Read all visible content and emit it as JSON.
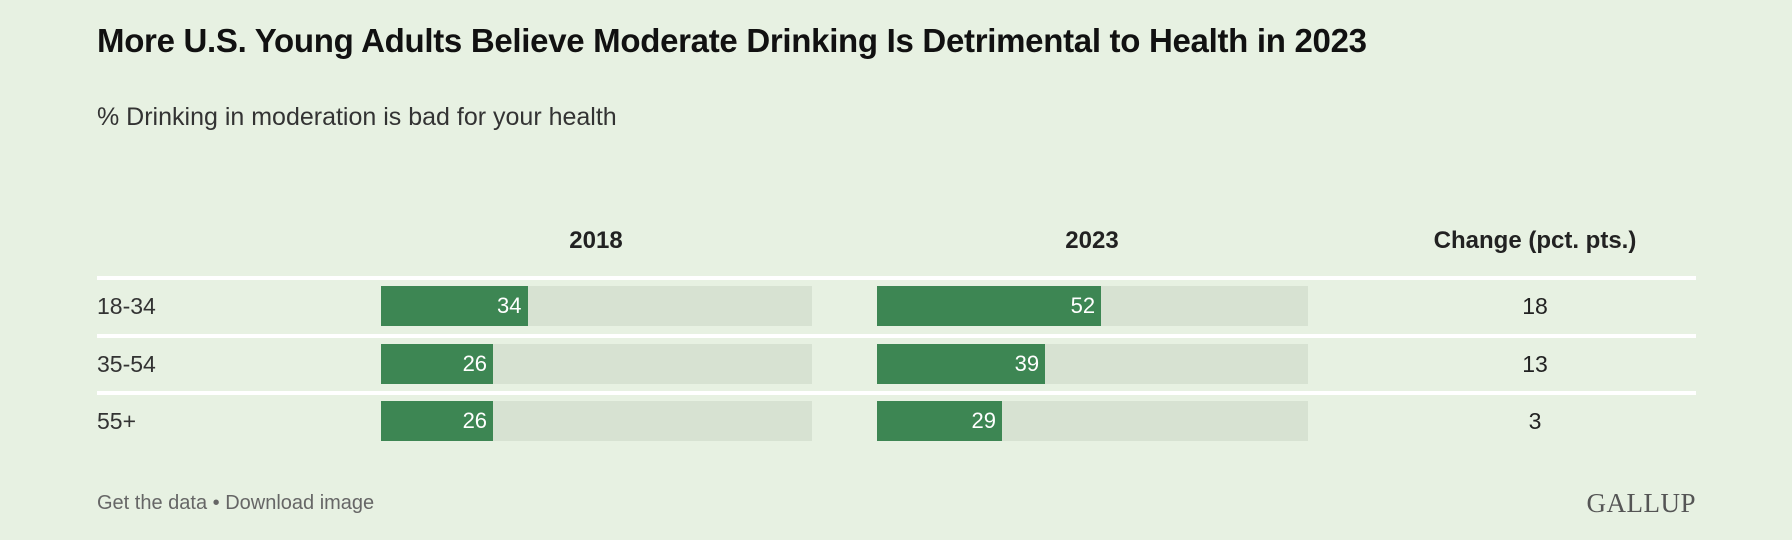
{
  "chart_data": {
    "type": "bar",
    "title": "More U.S. Young Adults Believe Moderate Drinking Is Detrimental to Health in 2023",
    "subtitle": "% Drinking in moderation is bad for your health",
    "columns": [
      "2018",
      "2023",
      "Change (pct. pts.)"
    ],
    "categories": [
      "18-34",
      "35-54",
      "55+"
    ],
    "series": [
      {
        "name": "2018",
        "values": [
          34,
          26,
          26
        ]
      },
      {
        "name": "2023",
        "values": [
          52,
          39,
          29
        ]
      }
    ],
    "change": [
      18,
      13,
      3
    ],
    "xlim": [
      0,
      100
    ],
    "colors": {
      "bar": "#3d8653",
      "track": "#d7e2d2",
      "background": "#e7f1e2"
    }
  },
  "footer": {
    "text": "Get the data • Download image",
    "logo": "GALLUP"
  }
}
